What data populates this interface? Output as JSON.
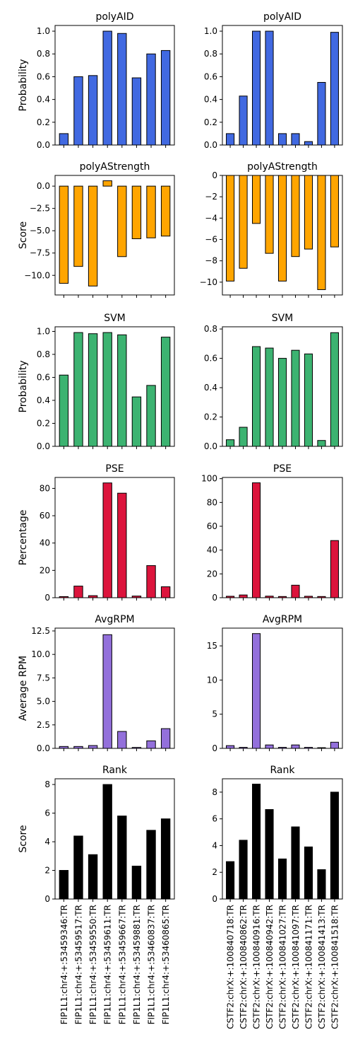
{
  "chart_data": {
    "type": "bar",
    "rows": [
      {
        "ylabel": "Probability",
        "color": "#4169e1",
        "panels": [
          {
            "title": "polyAID",
            "ylim": [
              0,
              1.05
            ],
            "yticks": [
              0.0,
              0.2,
              0.4,
              0.6,
              0.8,
              1.0
            ],
            "tick_labels": [
              "0.0",
              "0.2",
              "0.4",
              "0.6",
              "0.8",
              "1.0"
            ],
            "values": [
              0.1,
              0.6,
              0.61,
              1.0,
              0.98,
              0.59,
              0.8,
              0.83
            ]
          },
          {
            "title": "polyAID",
            "ylim": [
              0,
              1.05
            ],
            "yticks": [
              0.0,
              0.2,
              0.4,
              0.6,
              0.8,
              1.0
            ],
            "tick_labels": [
              "0.0",
              "0.2",
              "0.4",
              "0.6",
              "0.8",
              "1.0"
            ],
            "values": [
              0.1,
              0.43,
              1.0,
              1.0,
              0.1,
              0.1,
              0.03,
              0.55,
              0.99
            ]
          }
        ]
      },
      {
        "ylabel": "Score",
        "color": "#ffa500",
        "panels": [
          {
            "title": "polyAStrength",
            "ylim": [
              -12.2,
              1.2
            ],
            "yticks": [
              0.0,
              -2.5,
              -5.0,
              -7.5,
              -10.0
            ],
            "tick_labels": [
              "0.0",
              "−2.5",
              "−5.0",
              "−7.5",
              "−10.0"
            ],
            "values": [
              -10.9,
              -9.0,
              -11.2,
              0.6,
              -7.9,
              -5.9,
              -5.8,
              -5.6
            ]
          },
          {
            "title": "polyAStrength",
            "ylim": [
              -11.2,
              0
            ],
            "yticks": [
              0,
              -2,
              -4,
              -6,
              -8,
              -10
            ],
            "tick_labels": [
              "0",
              "−2",
              "−4",
              "−6",
              "−8",
              "−10"
            ],
            "values": [
              -9.9,
              -8.7,
              -4.5,
              -7.3,
              -9.9,
              -7.6,
              -6.9,
              -10.7,
              -6.7
            ]
          }
        ]
      },
      {
        "ylabel": "Probability",
        "color": "#3cb371",
        "panels": [
          {
            "title": "SVM",
            "ylim": [
              0,
              1.04
            ],
            "yticks": [
              0.0,
              0.2,
              0.4,
              0.6,
              0.8,
              1.0
            ],
            "tick_labels": [
              "0.0",
              "0.2",
              "0.4",
              "0.6",
              "0.8",
              "1.0"
            ],
            "values": [
              0.62,
              0.99,
              0.98,
              0.99,
              0.97,
              0.43,
              0.53,
              0.95
            ]
          },
          {
            "title": "SVM",
            "ylim": [
              0,
              0.815
            ],
            "yticks": [
              0.0,
              0.2,
              0.4,
              0.6,
              0.8
            ],
            "tick_labels": [
              "0.0",
              "0.2",
              "0.4",
              "0.6",
              "0.8"
            ],
            "values": [
              0.045,
              0.13,
              0.68,
              0.67,
              0.6,
              0.655,
              0.63,
              0.04,
              0.775
            ]
          }
        ]
      },
      {
        "ylabel": "Percentage",
        "color": "#dc143c",
        "panels": [
          {
            "title": "PSE",
            "ylim": [
              0,
              88
            ],
            "yticks": [
              0,
              20,
              40,
              60,
              80
            ],
            "tick_labels": [
              "0",
              "20",
              "40",
              "60",
              "80"
            ],
            "values": [
              0.8,
              8.5,
              1.5,
              84,
              76.5,
              1.2,
              23.5,
              8
            ]
          },
          {
            "title": "PSE",
            "ylim": [
              0,
              101
            ],
            "yticks": [
              0,
              20,
              40,
              60,
              80,
              100
            ],
            "tick_labels": [
              "0",
              "20",
              "40",
              "60",
              "80",
              "100"
            ],
            "values": [
              1.2,
              2.3,
              96.5,
              1.3,
              1.0,
              10.5,
              1.2,
              1.0,
              48
            ]
          }
        ]
      },
      {
        "ylabel": "Average RPM",
        "color": "#9370db",
        "panels": [
          {
            "title": "AvgRPM",
            "ylim": [
              0,
              12.8
            ],
            "yticks": [
              0.0,
              2.5,
              5.0,
              7.5,
              10.0,
              12.5
            ],
            "tick_labels": [
              "0.0",
              "2.5",
              "5.0",
              "7.5",
              "10.0",
              "12.5"
            ],
            "values": [
              0.2,
              0.2,
              0.3,
              12.1,
              1.8,
              0.1,
              0.8,
              2.1
            ]
          },
          {
            "title": "AvgRPM",
            "ylim": [
              0,
              17.6
            ],
            "yticks": [
              0,
              5,
              10,
              15
            ],
            "tick_labels": [
              "0",
              "5",
              "10",
              "15"
            ],
            "values": [
              0.4,
              0.15,
              16.8,
              0.5,
              0.15,
              0.5,
              0.15,
              0.1,
              0.9
            ]
          }
        ]
      },
      {
        "ylabel": "Score",
        "color": "#000000",
        "panels": [
          {
            "title": "Rank",
            "ylim": [
              0,
              8.4
            ],
            "yticks": [
              0,
              2,
              4,
              6,
              8
            ],
            "tick_labels": [
              "0",
              "2",
              "4",
              "6",
              "8"
            ],
            "values": [
              2.0,
              4.4,
              3.1,
              8.0,
              5.8,
              2.3,
              4.8,
              5.6
            ]
          },
          {
            "title": "Rank",
            "ylim": [
              0,
              9.0
            ],
            "yticks": [
              0,
              2,
              4,
              6,
              8
            ],
            "tick_labels": [
              "0",
              "2",
              "4",
              "6",
              "8"
            ],
            "values": [
              2.8,
              4.4,
              8.6,
              6.7,
              3.0,
              5.4,
              3.9,
              2.2,
              8.0
            ]
          }
        ]
      }
    ],
    "categories": [
      [
        "FIP1L1:chr4:+:53459346:TR",
        "FIP1L1:chr4:+:53459517:TR",
        "FIP1L1:chr4:+:53459550:TR",
        "FIP1L1:chr4:+:53459611:TR",
        "FIP1L1:chr4:+:53459667:TR",
        "FIP1L1:chr4:+:53459881:TR",
        "FIP1L1:chr4:+:53460837:TR",
        "FIP1L1:chr4:+:53460865:TR"
      ],
      [
        "CSTF2:chrX:+:100840718:TR",
        "CSTF2:chrX:+:100840862:TR",
        "CSTF2:chrX:+:100840916:TR",
        "CSTF2:chrX:+:100840942:TR",
        "CSTF2:chrX:+:100841027:TR",
        "CSTF2:chrX:+:100841097:TR",
        "CSTF2:chrX:+:100841171:TR",
        "CSTF2:chrX:+:100841413:TR",
        "CSTF2:chrX:+:100841518:TR"
      ]
    ],
    "grid": false,
    "legend": "none"
  }
}
